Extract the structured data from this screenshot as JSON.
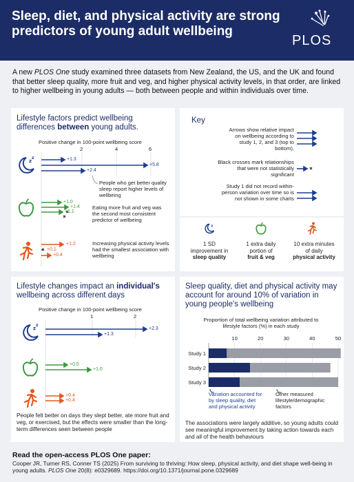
{
  "header": {
    "title": "Sleep, diet, and physical activity are strong predictors of young adult wellbeing",
    "logo_text": "PLOS"
  },
  "intro": {
    "part1": "A new ",
    "journal": "PLOS One",
    "part2": " study examined three datasets from New Zealand, the US, and the UK and found that better sleep quality, more fruit and veg, and higher physical activity levels, in that order, are linked to higher wellbeing in young adults — both between people and within individuals over time."
  },
  "between_panel": {
    "title_part1": "Lifestyle factors predict wellbeing differences ",
    "title_bold": "between",
    "title_part2": " young adults.",
    "axis_label": "Positive change in 100-point wellbeing score",
    "ticks": [
      "2",
      "4",
      "6"
    ],
    "sleep_values": [
      "+1.3",
      "+5.8",
      "+2.4"
    ],
    "sleep_note": "People who get better quality sleep report higher levels of wellbeing",
    "fruit_values": [
      "+1.0",
      "+1.4",
      "+1.1"
    ],
    "fruit_note": "Eating more fruit and veg was the second most consistent predictor of wellbeing",
    "activity_values": [
      "+1.2",
      "+0.1",
      "+0.4"
    ],
    "activity_note": "Increasing physical activity levels had the smallest association with wellbeing"
  },
  "key_panel": {
    "title": "Key",
    "arrows_text": "Arrows show relative impact on wellbeing according to study 1, 2, and 3 (top to bottom).",
    "crosses_text": "Black crosses mark relationships that were not statistically significant",
    "study1_text": "Study 1 did not record within-person variation over time so is not shown in some charts",
    "sleep_cap_1": "1 SD",
    "sleep_cap_2": "improvement in",
    "sleep_cap_3": "sleep quality",
    "fruit_cap_1": "1 extra daily",
    "fruit_cap_2": "portion of",
    "fruit_cap_3": "fruit & veg",
    "act_cap_1": "10 extra minutes",
    "act_cap_2": "of daily",
    "act_cap_3": "physical activity"
  },
  "within_panel": {
    "title_part1": "Lifestyle changes impact an ",
    "title_bold": "individual's",
    "title_part2": " wellbeing across different days",
    "axis_label": "Positive change in 100-point wellbeing score",
    "ticks": [
      "1",
      "2"
    ],
    "sleep_values": [
      "+2.3",
      "+1.3"
    ],
    "fruit_values": [
      "+0.5",
      "+1.0"
    ],
    "activity_values": [
      "+0.4",
      "+0.4"
    ],
    "note": "People felt better on days they slept better, ate more fruit and veg, or exercised, but the effects were smaller than the long-term differences seen between people"
  },
  "variation_panel": {
    "title": "Sleep quality, diet and physical activity may account for around 10% of variation in young people's wellbeing",
    "axis_label": "Proportion of total wellbeing variation attributed to lifestyle factors (%) in each study",
    "ticks": [
      "10",
      "20",
      "30",
      "40",
      "50"
    ],
    "legend_lifestyle": "Variation accounted for by sleep quality, diet and physical activity",
    "legend_other": "Other measured lifestyle/demographic factors",
    "note": "The associations were largely additive, so young adults could see meaningful improvement by taking action towards each and all of the health behaviours"
  },
  "chart_data": {
    "type": "bar",
    "title": "Proportion of total wellbeing variation attributed to lifestyle factors (%) in each study",
    "categories": [
      "Study 1",
      "Study 2",
      "Study 3"
    ],
    "series": [
      {
        "name": "Variation accounted for by sleep quality, diet and physical activity",
        "values": [
          7,
          16,
          12
        ]
      },
      {
        "name": "Other measured lifestyle/demographic factors",
        "values": [
          44,
          31,
          38
        ]
      }
    ],
    "xlim": [
      0,
      50
    ],
    "xlabel": "",
    "ylabel": ""
  },
  "footer": {
    "title": "Read the open-access PLOS One paper:",
    "citation": "Cooper JR, Turner RS, Conner TS (2025) From surviving to thriving: How sleep, physical activity, and diet shape well-being in young adults.",
    "journal": "PLOS One",
    "ref": " 20(8): e0329689. https://doi.org/10.1371/journal.pone.0329689"
  },
  "colors": {
    "navy": "#1b2c66",
    "blue": "#1e3d8f",
    "green": "#3a9a3e",
    "orange": "#e3581f",
    "grey_bar": "#9a9ca6"
  }
}
